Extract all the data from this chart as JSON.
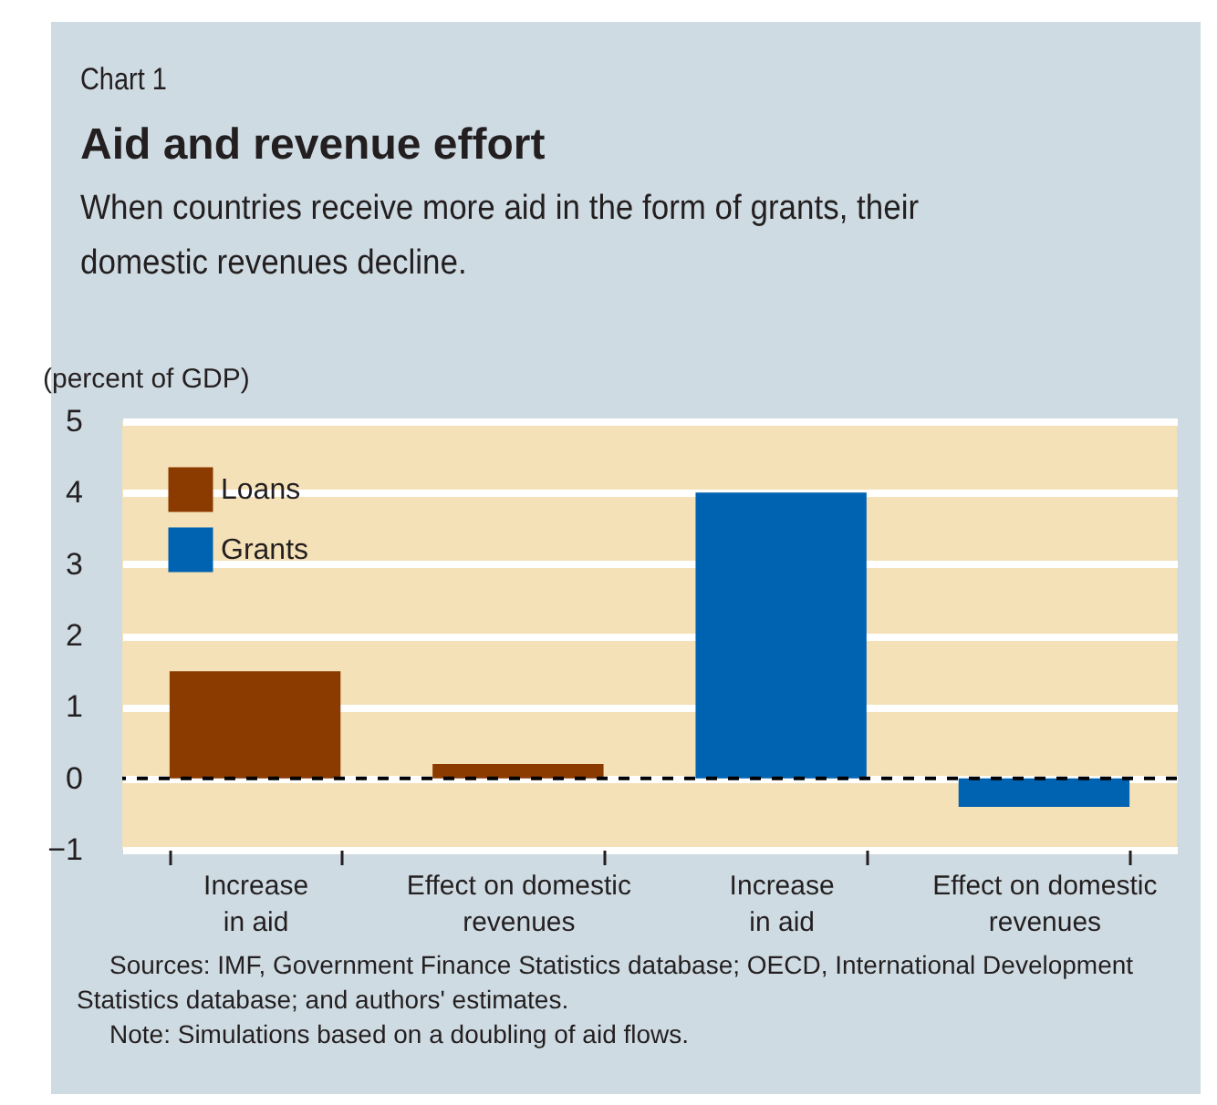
{
  "chart_data": {
    "type": "bar",
    "title": "Aid and revenue effort",
    "subtitle": "When countries receive more aid in the form of grants, their domestic revenues decline.",
    "ylabel": "(percent of GDP)",
    "annotations": [
      "Chart 1",
      "Sources: IMF, Government Finance Statistics database; OECD, International Development Statistics database; and authors' estimates.",
      "Note: Simulations based on a doubling of aid flows."
    ],
    "categories": [
      "Increase\nin aid",
      "Effect on domestic\nrevenues",
      "Increase\nin aid",
      "Effect on domestic\nrevenues"
    ],
    "series": [
      {
        "name": "Loans",
        "color": "#8b3a00",
        "values": [
          1.5,
          0.2,
          null,
          null
        ]
      },
      {
        "name": "Grants",
        "color": "#0063b1",
        "values": [
          null,
          null,
          4.0,
          -0.4
        ]
      }
    ],
    "ylim": [
      -1,
      5
    ],
    "yticks": [
      -1,
      0,
      1,
      2,
      3,
      4,
      5
    ],
    "grid": "y",
    "legend": "top left",
    "ref_lines": [
      {
        "axis": "y",
        "value": 0,
        "line_style": "dashed",
        "color": "#000000"
      }
    ]
  }
}
